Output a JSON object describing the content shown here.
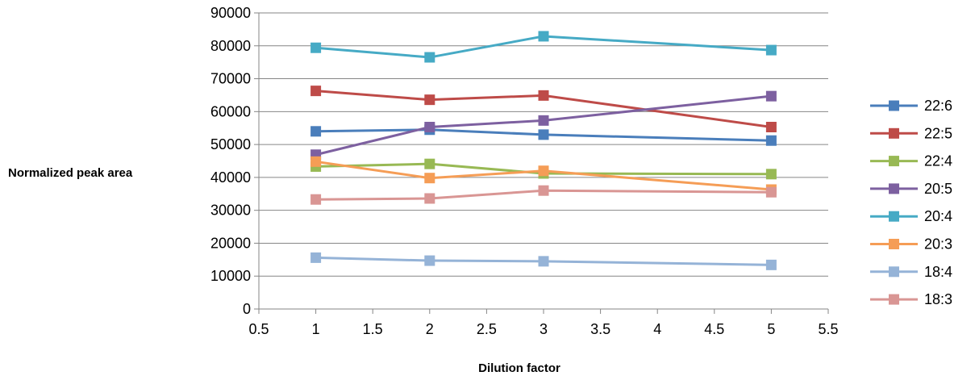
{
  "chart_data": {
    "type": "scatter",
    "title": "",
    "xlabel": "Dilution factor",
    "ylabel": "Normalized peak area",
    "xlim": [
      0.5,
      5.5
    ],
    "ylim": [
      0,
      90000
    ],
    "x_ticks": [
      "0.5",
      "1",
      "1.5",
      "2",
      "2.5",
      "3",
      "3.5",
      "4",
      "4.5",
      "5",
      "5.5"
    ],
    "y_ticks": [
      "0",
      "10000",
      "20000",
      "30000",
      "40000",
      "50000",
      "60000",
      "70000",
      "80000",
      "90000"
    ],
    "grid": "horizontal",
    "legend_position": "right",
    "x": [
      1,
      2,
      3,
      5
    ],
    "series": [
      {
        "name": "22:6",
        "color": "#4a7ebb",
        "values": [
          54000,
          54500,
          53000,
          51200
        ]
      },
      {
        "name": "22:5",
        "color": "#be4b48",
        "values": [
          66300,
          63600,
          64900,
          55300
        ]
      },
      {
        "name": "22:4",
        "color": "#98b954",
        "values": [
          43300,
          44100,
          41200,
          41000
        ]
      },
      {
        "name": "20:5",
        "color": "#7d60a0",
        "values": [
          46900,
          55300,
          57300,
          64700
        ]
      },
      {
        "name": "20:4",
        "color": "#46aac5",
        "values": [
          79400,
          76500,
          82900,
          78700
        ]
      },
      {
        "name": "20:3",
        "color": "#f59d56",
        "values": [
          44800,
          39800,
          42000,
          36300
        ]
      },
      {
        "name": "18:4",
        "color": "#95b3d7",
        "values": [
          15600,
          14700,
          14500,
          13400
        ]
      },
      {
        "name": "18:3",
        "color": "#d99694",
        "values": [
          33300,
          33600,
          36000,
          35500
        ]
      }
    ]
  }
}
